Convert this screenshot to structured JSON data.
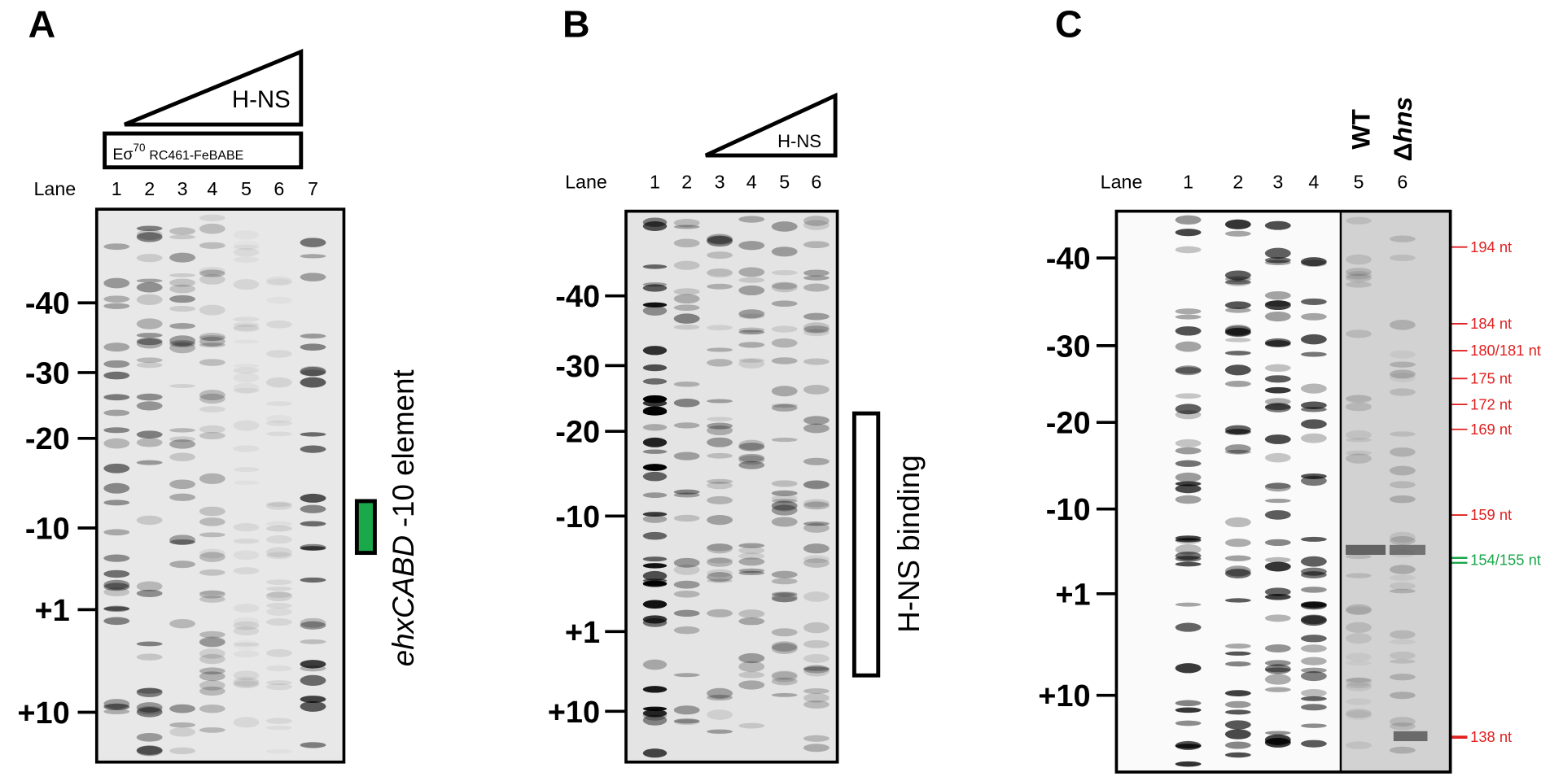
{
  "panels": [
    {
      "label": "A",
      "titration": "H-NS",
      "complex_parts": [
        "Eσ",
        "70",
        "RC461-FeBABE"
      ],
      "lane_title": "Lane",
      "lanes": [
        "1",
        "2",
        "3",
        "4",
        "5",
        "6",
        "7"
      ],
      "positions": [
        "-40",
        "-30",
        "-20",
        "-10",
        "+1",
        "+10"
      ],
      "annotation_italic": "ehxCABD",
      "annotation": "-10 element"
    },
    {
      "label": "B",
      "titration": "H-NS",
      "lane_title": "Lane",
      "lanes": [
        "1",
        "2",
        "3",
        "4",
        "5",
        "6"
      ],
      "positions": [
        "-40",
        "-30",
        "-20",
        "-10",
        "+1",
        "+10"
      ],
      "annotation": "H-NS binding"
    },
    {
      "label": "C",
      "strains": {
        "wt": "WT",
        "delta": "Δ",
        "gene": "hns"
      },
      "lane_title": "Lane",
      "lanes": [
        "1",
        "2",
        "3",
        "4",
        "5",
        "6"
      ],
      "positions": [
        "-40",
        "-30",
        "-20",
        "-10",
        "+1",
        "+10"
      ],
      "sizes": [
        "194 nt",
        "184 nt",
        "180/181 nt",
        "175 nt",
        "172 nt",
        "169 nt",
        "159 nt",
        "154/155 nt",
        "138 nt"
      ]
    }
  ]
}
